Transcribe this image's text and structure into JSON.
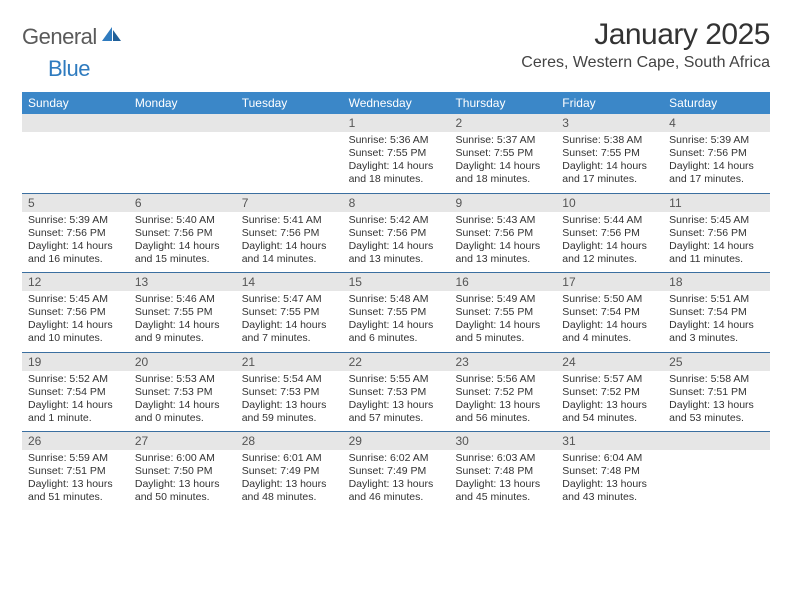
{
  "brand": {
    "general": "General",
    "blue": "Blue"
  },
  "title": "January 2025",
  "location": "Ceres, Western Cape, South Africa",
  "colors": {
    "header_bg": "#3b87c8",
    "header_text": "#ffffff",
    "daynum_bg": "#e6e6e6",
    "daynum_text": "#555555",
    "rule": "#3b6fa0",
    "body_text": "#333333",
    "page_bg": "#ffffff",
    "logo_gray": "#5a5a5a",
    "logo_blue": "#2f7bbf"
  },
  "typography": {
    "title_fontsize": 30,
    "location_fontsize": 16,
    "weekday_fontsize": 12,
    "daynum_fontsize": 12,
    "cell_fontsize": 10.5
  },
  "weekdays": [
    "Sunday",
    "Monday",
    "Tuesday",
    "Wednesday",
    "Thursday",
    "Friday",
    "Saturday"
  ],
  "weeks": [
    {
      "nums": [
        "",
        "",
        "",
        "1",
        "2",
        "3",
        "4"
      ],
      "cells": [
        {},
        {},
        {},
        {
          "sunrise": "Sunrise: 5:36 AM",
          "sunset": "Sunset: 7:55 PM",
          "day1": "Daylight: 14 hours",
          "day2": "and 18 minutes."
        },
        {
          "sunrise": "Sunrise: 5:37 AM",
          "sunset": "Sunset: 7:55 PM",
          "day1": "Daylight: 14 hours",
          "day2": "and 18 minutes."
        },
        {
          "sunrise": "Sunrise: 5:38 AM",
          "sunset": "Sunset: 7:55 PM",
          "day1": "Daylight: 14 hours",
          "day2": "and 17 minutes."
        },
        {
          "sunrise": "Sunrise: 5:39 AM",
          "sunset": "Sunset: 7:56 PM",
          "day1": "Daylight: 14 hours",
          "day2": "and 17 minutes."
        }
      ]
    },
    {
      "nums": [
        "5",
        "6",
        "7",
        "8",
        "9",
        "10",
        "11"
      ],
      "cells": [
        {
          "sunrise": "Sunrise: 5:39 AM",
          "sunset": "Sunset: 7:56 PM",
          "day1": "Daylight: 14 hours",
          "day2": "and 16 minutes."
        },
        {
          "sunrise": "Sunrise: 5:40 AM",
          "sunset": "Sunset: 7:56 PM",
          "day1": "Daylight: 14 hours",
          "day2": "and 15 minutes."
        },
        {
          "sunrise": "Sunrise: 5:41 AM",
          "sunset": "Sunset: 7:56 PM",
          "day1": "Daylight: 14 hours",
          "day2": "and 14 minutes."
        },
        {
          "sunrise": "Sunrise: 5:42 AM",
          "sunset": "Sunset: 7:56 PM",
          "day1": "Daylight: 14 hours",
          "day2": "and 13 minutes."
        },
        {
          "sunrise": "Sunrise: 5:43 AM",
          "sunset": "Sunset: 7:56 PM",
          "day1": "Daylight: 14 hours",
          "day2": "and 13 minutes."
        },
        {
          "sunrise": "Sunrise: 5:44 AM",
          "sunset": "Sunset: 7:56 PM",
          "day1": "Daylight: 14 hours",
          "day2": "and 12 minutes."
        },
        {
          "sunrise": "Sunrise: 5:45 AM",
          "sunset": "Sunset: 7:56 PM",
          "day1": "Daylight: 14 hours",
          "day2": "and 11 minutes."
        }
      ]
    },
    {
      "nums": [
        "12",
        "13",
        "14",
        "15",
        "16",
        "17",
        "18"
      ],
      "cells": [
        {
          "sunrise": "Sunrise: 5:45 AM",
          "sunset": "Sunset: 7:56 PM",
          "day1": "Daylight: 14 hours",
          "day2": "and 10 minutes."
        },
        {
          "sunrise": "Sunrise: 5:46 AM",
          "sunset": "Sunset: 7:55 PM",
          "day1": "Daylight: 14 hours",
          "day2": "and 9 minutes."
        },
        {
          "sunrise": "Sunrise: 5:47 AM",
          "sunset": "Sunset: 7:55 PM",
          "day1": "Daylight: 14 hours",
          "day2": "and 7 minutes."
        },
        {
          "sunrise": "Sunrise: 5:48 AM",
          "sunset": "Sunset: 7:55 PM",
          "day1": "Daylight: 14 hours",
          "day2": "and 6 minutes."
        },
        {
          "sunrise": "Sunrise: 5:49 AM",
          "sunset": "Sunset: 7:55 PM",
          "day1": "Daylight: 14 hours",
          "day2": "and 5 minutes."
        },
        {
          "sunrise": "Sunrise: 5:50 AM",
          "sunset": "Sunset: 7:54 PM",
          "day1": "Daylight: 14 hours",
          "day2": "and 4 minutes."
        },
        {
          "sunrise": "Sunrise: 5:51 AM",
          "sunset": "Sunset: 7:54 PM",
          "day1": "Daylight: 14 hours",
          "day2": "and 3 minutes."
        }
      ]
    },
    {
      "nums": [
        "19",
        "20",
        "21",
        "22",
        "23",
        "24",
        "25"
      ],
      "cells": [
        {
          "sunrise": "Sunrise: 5:52 AM",
          "sunset": "Sunset: 7:54 PM",
          "day1": "Daylight: 14 hours",
          "day2": "and 1 minute."
        },
        {
          "sunrise": "Sunrise: 5:53 AM",
          "sunset": "Sunset: 7:53 PM",
          "day1": "Daylight: 14 hours",
          "day2": "and 0 minutes."
        },
        {
          "sunrise": "Sunrise: 5:54 AM",
          "sunset": "Sunset: 7:53 PM",
          "day1": "Daylight: 13 hours",
          "day2": "and 59 minutes."
        },
        {
          "sunrise": "Sunrise: 5:55 AM",
          "sunset": "Sunset: 7:53 PM",
          "day1": "Daylight: 13 hours",
          "day2": "and 57 minutes."
        },
        {
          "sunrise": "Sunrise: 5:56 AM",
          "sunset": "Sunset: 7:52 PM",
          "day1": "Daylight: 13 hours",
          "day2": "and 56 minutes."
        },
        {
          "sunrise": "Sunrise: 5:57 AM",
          "sunset": "Sunset: 7:52 PM",
          "day1": "Daylight: 13 hours",
          "day2": "and 54 minutes."
        },
        {
          "sunrise": "Sunrise: 5:58 AM",
          "sunset": "Sunset: 7:51 PM",
          "day1": "Daylight: 13 hours",
          "day2": "and 53 minutes."
        }
      ]
    },
    {
      "nums": [
        "26",
        "27",
        "28",
        "29",
        "30",
        "31",
        ""
      ],
      "cells": [
        {
          "sunrise": "Sunrise: 5:59 AM",
          "sunset": "Sunset: 7:51 PM",
          "day1": "Daylight: 13 hours",
          "day2": "and 51 minutes."
        },
        {
          "sunrise": "Sunrise: 6:00 AM",
          "sunset": "Sunset: 7:50 PM",
          "day1": "Daylight: 13 hours",
          "day2": "and 50 minutes."
        },
        {
          "sunrise": "Sunrise: 6:01 AM",
          "sunset": "Sunset: 7:49 PM",
          "day1": "Daylight: 13 hours",
          "day2": "and 48 minutes."
        },
        {
          "sunrise": "Sunrise: 6:02 AM",
          "sunset": "Sunset: 7:49 PM",
          "day1": "Daylight: 13 hours",
          "day2": "and 46 minutes."
        },
        {
          "sunrise": "Sunrise: 6:03 AM",
          "sunset": "Sunset: 7:48 PM",
          "day1": "Daylight: 13 hours",
          "day2": "and 45 minutes."
        },
        {
          "sunrise": "Sunrise: 6:04 AM",
          "sunset": "Sunset: 7:48 PM",
          "day1": "Daylight: 13 hours",
          "day2": "and 43 minutes."
        },
        {}
      ]
    }
  ]
}
